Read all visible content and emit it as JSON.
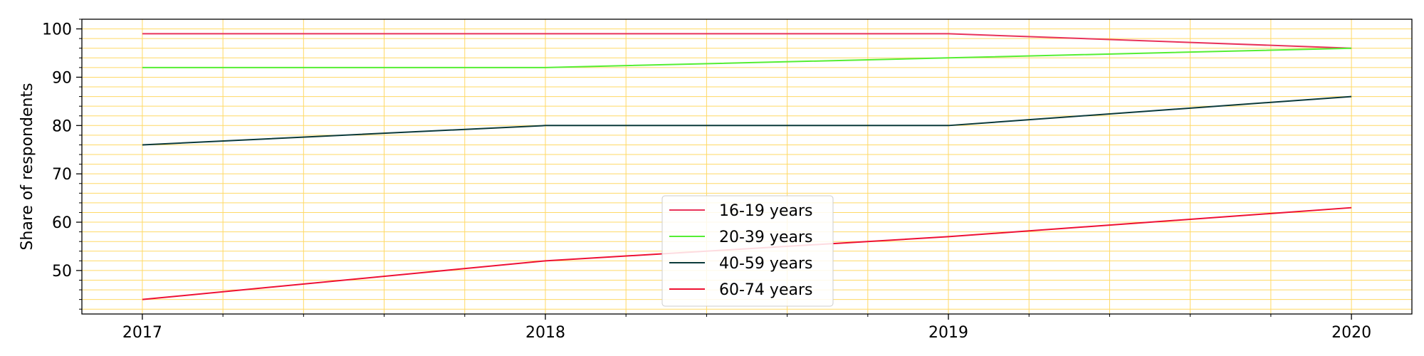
{
  "chart_data": {
    "type": "line",
    "title": "",
    "xlabel": "",
    "ylabel": "Share of respondents",
    "x": [
      "2017",
      "2018",
      "2019",
      "2020"
    ],
    "xlim": [
      2016.85,
      2020.15
    ],
    "ylim": [
      41,
      102
    ],
    "yticks": [
      50,
      60,
      70,
      80,
      90,
      100
    ],
    "grid": true,
    "grid_color": "#ffd966",
    "legend_position": "bottom-center",
    "series": [
      {
        "name": "16-19 years",
        "color": "#e8335a",
        "values": [
          99,
          99,
          99,
          96
        ]
      },
      {
        "name": "20-39 years",
        "color": "#55ee33",
        "values": [
          92,
          92,
          94,
          96
        ]
      },
      {
        "name": "40-59 years",
        "color": "#0b3a3a",
        "values": [
          76,
          80,
          80,
          86
        ]
      },
      {
        "name": "60-74 years",
        "color": "#ee1133",
        "values": [
          44,
          52,
          57,
          63
        ]
      }
    ]
  }
}
